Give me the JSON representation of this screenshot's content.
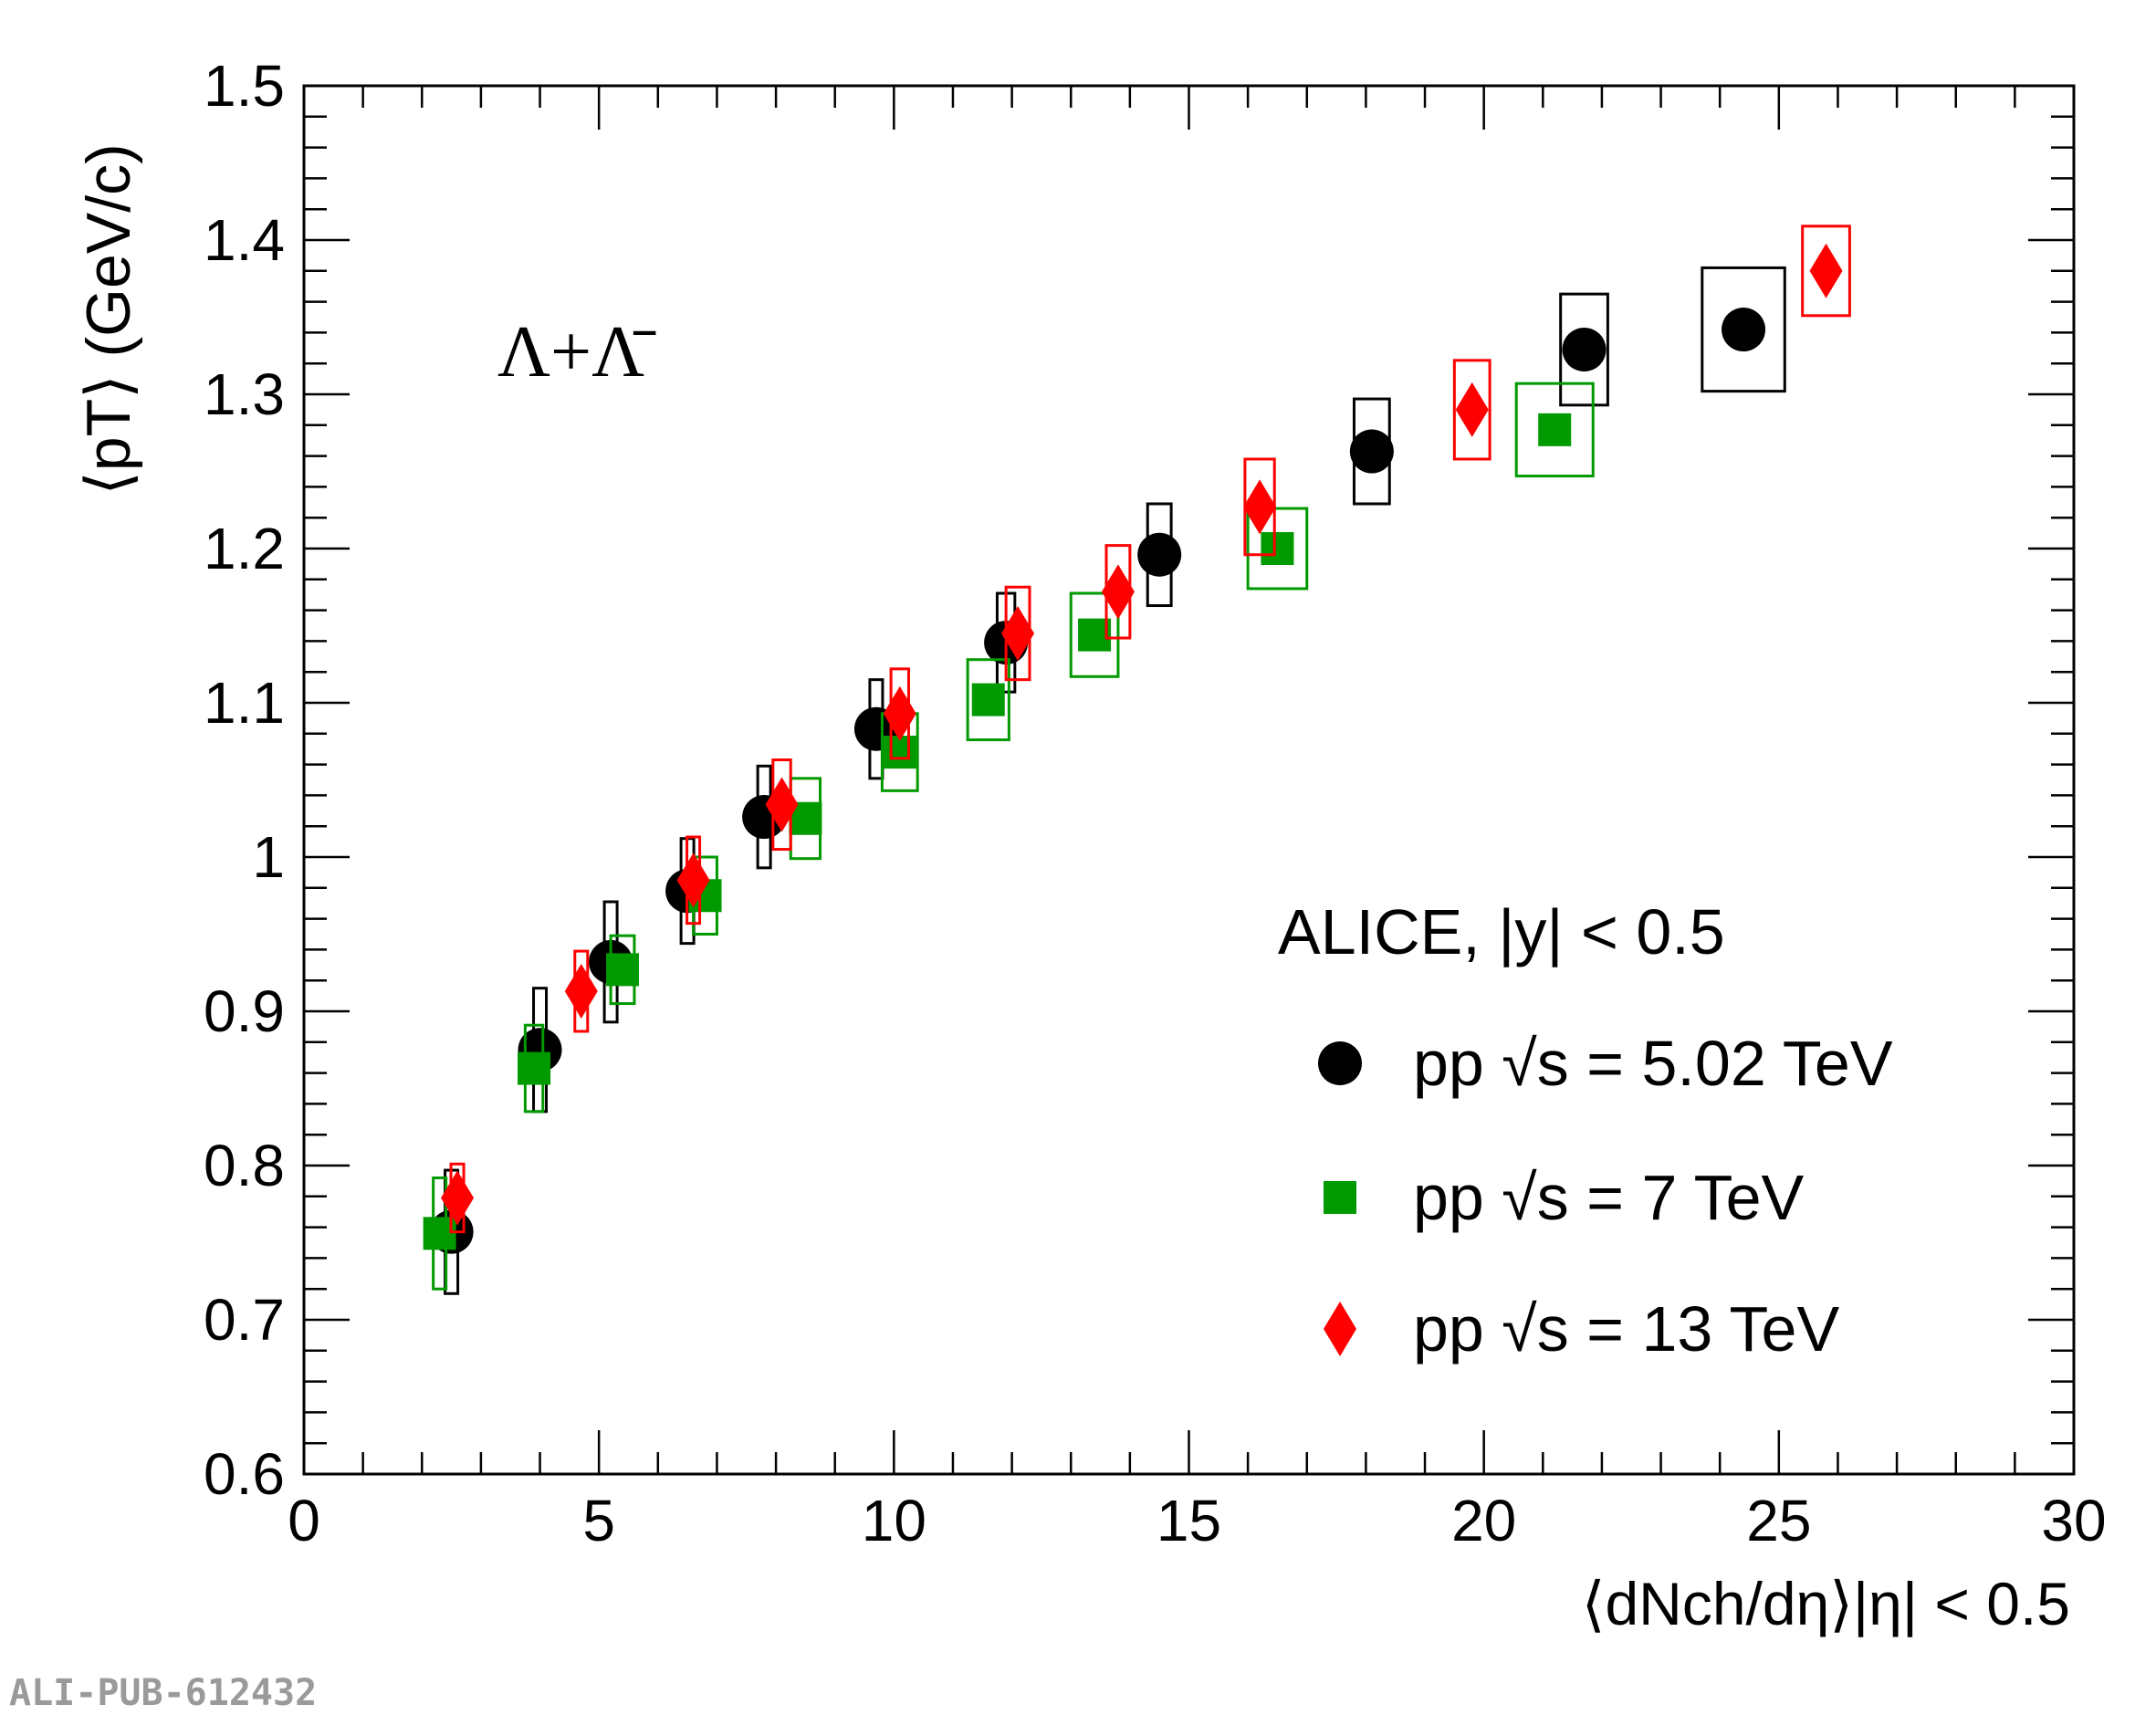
{
  "chart_data": {
    "type": "scatter",
    "title": "",
    "xlabel": "⟨dNch/dη⟩|η| < 0.5",
    "ylabel": "⟨pT⟩ (GeV/c)",
    "xlim": [
      0,
      30
    ],
    "ylim": [
      0.6,
      1.5
    ],
    "x_ticks": [
      "0",
      "5",
      "10",
      "15",
      "20",
      "25",
      "30"
    ],
    "y_ticks": [
      "0.6",
      "0.7",
      "0.8",
      "0.9",
      "1",
      "1.1",
      "1.2",
      "1.3",
      "1.4",
      "1.5"
    ],
    "grid": false,
    "legend_position": "bottom-right",
    "annotations": {
      "particle": "Λ+Λ̄",
      "experiment": "ALICE,  |y| < 0.5",
      "watermark": "ALI-PUB-612432"
    },
    "series": [
      {
        "name": "pp √s = 5.02 TeV",
        "marker": "circle",
        "color": "#000000",
        "points": [
          {
            "x": 2.5,
            "y": 0.757,
            "sx": 0.1,
            "sy": 0.04
          },
          {
            "x": 4.0,
            "y": 0.875,
            "sx": 0.1,
            "sy": 0.04
          },
          {
            "x": 5.2,
            "y": 0.932,
            "sx": 0.1,
            "sy": 0.039
          },
          {
            "x": 6.5,
            "y": 0.978,
            "sx": 0.1,
            "sy": 0.034
          },
          {
            "x": 7.8,
            "y": 1.026,
            "sx": 0.1,
            "sy": 0.033
          },
          {
            "x": 9.7,
            "y": 1.083,
            "sx": 0.1,
            "sy": 0.032
          },
          {
            "x": 11.9,
            "y": 1.139,
            "sx": 0.15,
            "sy": 0.032
          },
          {
            "x": 14.5,
            "y": 1.196,
            "sx": 0.2,
            "sy": 0.033
          },
          {
            "x": 18.1,
            "y": 1.263,
            "sx": 0.3,
            "sy": 0.034
          },
          {
            "x": 21.7,
            "y": 1.329,
            "sx": 0.4,
            "sy": 0.036
          },
          {
            "x": 24.4,
            "y": 1.342,
            "sx": 0.7,
            "sy": 0.04
          }
        ]
      },
      {
        "name": "pp √s = 7 TeV",
        "marker": "square",
        "color": "#009900",
        "points": [
          {
            "x": 2.3,
            "y": 0.756,
            "sx": 0.1,
            "sy": 0.036
          },
          {
            "x": 3.9,
            "y": 0.863,
            "sx": 0.15,
            "sy": 0.028
          },
          {
            "x": 5.4,
            "y": 0.927,
            "sx": 0.2,
            "sy": 0.022
          },
          {
            "x": 6.8,
            "y": 0.975,
            "sx": 0.2,
            "sy": 0.025
          },
          {
            "x": 8.5,
            "y": 1.025,
            "sx": 0.25,
            "sy": 0.026
          },
          {
            "x": 10.1,
            "y": 1.068,
            "sx": 0.3,
            "sy": 0.025
          },
          {
            "x": 11.6,
            "y": 1.102,
            "sx": 0.35,
            "sy": 0.026
          },
          {
            "x": 13.4,
            "y": 1.144,
            "sx": 0.4,
            "sy": 0.027
          },
          {
            "x": 16.5,
            "y": 1.2,
            "sx": 0.5,
            "sy": 0.026
          },
          {
            "x": 21.2,
            "y": 1.277,
            "sx": 0.65,
            "sy": 0.03
          }
        ]
      },
      {
        "name": "pp √s = 13 TeV",
        "marker": "diamond",
        "color": "#ff0000",
        "points": [
          {
            "x": 2.6,
            "y": 0.779,
            "sx": 0.06,
            "sy": 0.022
          },
          {
            "x": 4.7,
            "y": 0.913,
            "sx": 0.1,
            "sy": 0.026
          },
          {
            "x": 6.6,
            "y": 0.985,
            "sx": 0.1,
            "sy": 0.028
          },
          {
            "x": 8.1,
            "y": 1.034,
            "sx": 0.15,
            "sy": 0.029
          },
          {
            "x": 10.1,
            "y": 1.093,
            "sx": 0.15,
            "sy": 0.029
          },
          {
            "x": 12.1,
            "y": 1.145,
            "sx": 0.2,
            "sy": 0.03
          },
          {
            "x": 13.8,
            "y": 1.172,
            "sx": 0.2,
            "sy": 0.03
          },
          {
            "x": 16.2,
            "y": 1.227,
            "sx": 0.25,
            "sy": 0.031
          },
          {
            "x": 19.8,
            "y": 1.29,
            "sx": 0.3,
            "sy": 0.032
          },
          {
            "x": 25.8,
            "y": 1.38,
            "sx": 0.4,
            "sy": 0.029
          }
        ]
      }
    ]
  }
}
